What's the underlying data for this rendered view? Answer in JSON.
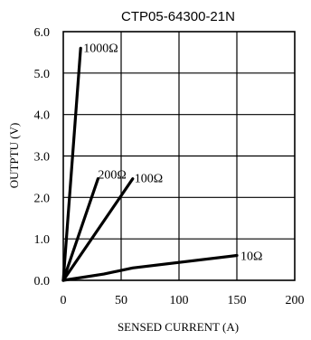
{
  "chart_data": {
    "type": "line",
    "title": "CTP05-64300-21N",
    "xlabel": "SENSED CURRENT (A)",
    "ylabel": "OUTPTU (V)",
    "xlim": [
      0,
      200
    ],
    "ylim": [
      0,
      6
    ],
    "x_ticks": [
      "0",
      "50",
      "100",
      "150",
      "200"
    ],
    "y_ticks": [
      "0.0",
      "1.0",
      "2.0",
      "3.0",
      "4.0",
      "5.0",
      "6.0"
    ],
    "grid": true,
    "series": [
      {
        "name": "1000Ω",
        "x": [
          0,
          15
        ],
        "y": [
          0,
          5.6
        ]
      },
      {
        "name": "200Ω",
        "x": [
          0,
          30
        ],
        "y": [
          0,
          2.45
        ]
      },
      {
        "name": "100Ω",
        "x": [
          0,
          60
        ],
        "y": [
          0,
          2.45
        ]
      },
      {
        "name": "10Ω",
        "x": [
          0,
          35,
          60,
          150
        ],
        "y": [
          0,
          0.15,
          0.3,
          0.6
        ]
      }
    ]
  }
}
